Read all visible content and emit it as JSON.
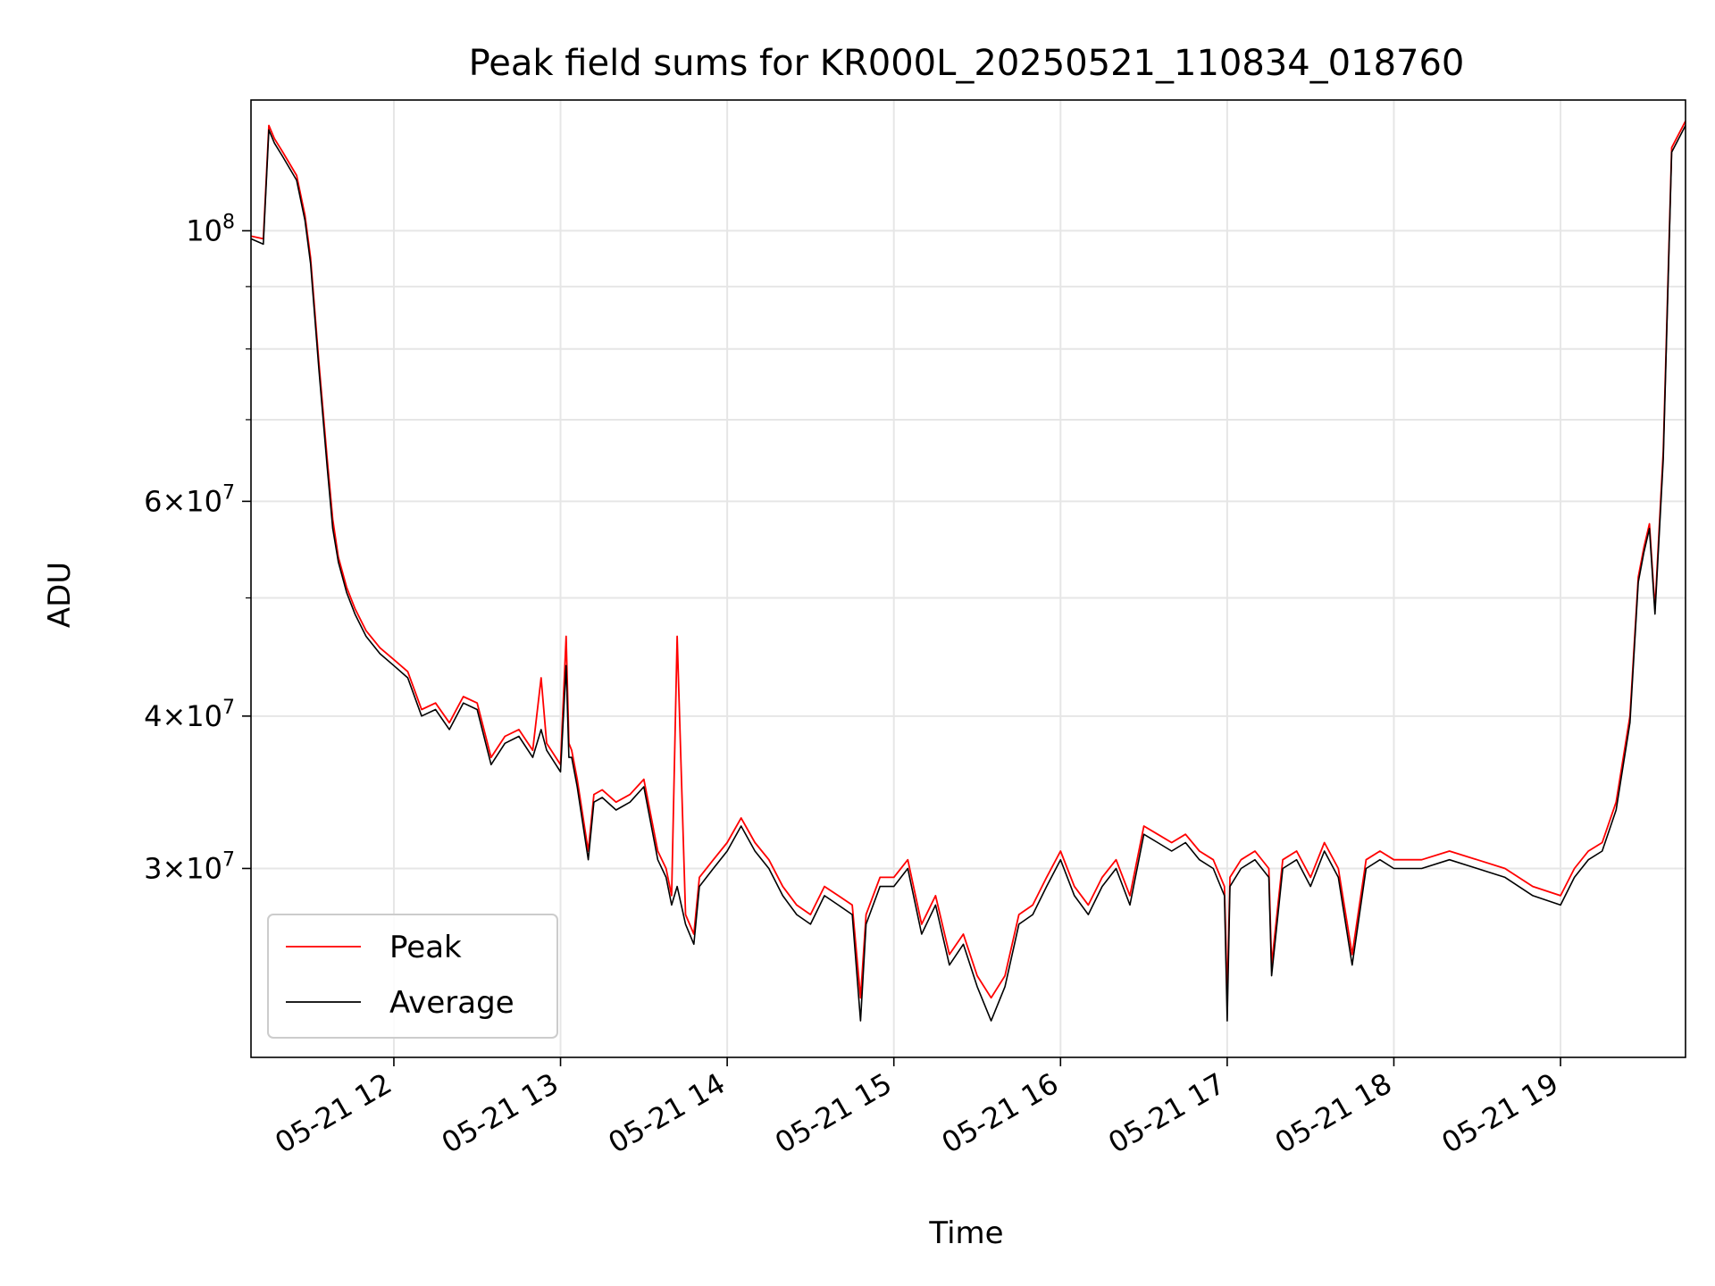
{
  "chart_data": {
    "type": "line",
    "title": "Peak field sums for KR000L_20250521_110834_018760",
    "xlabel": "Time",
    "ylabel": "ADU",
    "yscale": "log",
    "ylim": [
      21000000,
      128000000
    ],
    "xlim": [
      "2025-05-21T11:08:34",
      "2025-05-21T19:45:00"
    ],
    "x_ticks": [
      {
        "t": "2025-05-21T12:00:00",
        "label": "05-21 12"
      },
      {
        "t": "2025-05-21T13:00:00",
        "label": "05-21 13"
      },
      {
        "t": "2025-05-21T14:00:00",
        "label": "05-21 14"
      },
      {
        "t": "2025-05-21T15:00:00",
        "label": "05-21 15"
      },
      {
        "t": "2025-05-21T16:00:00",
        "label": "05-21 16"
      },
      {
        "t": "2025-05-21T17:00:00",
        "label": "05-21 17"
      },
      {
        "t": "2025-05-21T18:00:00",
        "label": "05-21 18"
      },
      {
        "t": "2025-05-21T19:00:00",
        "label": "05-21 19"
      }
    ],
    "y_major_ticks": [
      {
        "value": 100000000,
        "base": "10",
        "exp": "8",
        "mant": ""
      },
      {
        "value": 60000000,
        "base": "10",
        "exp": "7",
        "mant": "6"
      },
      {
        "value": 40000000,
        "base": "10",
        "exp": "7",
        "mant": "4"
      },
      {
        "value": 30000000,
        "base": "10",
        "exp": "7",
        "mant": "3"
      }
    ],
    "y_minor_ticks": [
      90000000,
      80000000,
      70000000,
      50000000
    ],
    "grid": true,
    "legend": {
      "position": "lower-left",
      "entries": [
        "Peak",
        "Average"
      ]
    },
    "series": [
      {
        "name": "Peak",
        "color": "#ff0000",
        "x": [
          "2025-05-21T11:08:34",
          "2025-05-21T11:13:00",
          "2025-05-21T11:15:00",
          "2025-05-21T11:17:00",
          "2025-05-21T11:20:00",
          "2025-05-21T11:25:00",
          "2025-05-21T11:28:00",
          "2025-05-21T11:30:00",
          "2025-05-21T11:33:00",
          "2025-05-21T11:36:00",
          "2025-05-21T11:38:00",
          "2025-05-21T11:40:00",
          "2025-05-21T11:43:00",
          "2025-05-21T11:46:00",
          "2025-05-21T11:50:00",
          "2025-05-21T11:55:00",
          "2025-05-21T12:00:00",
          "2025-05-21T12:05:00",
          "2025-05-21T12:10:00",
          "2025-05-21T12:15:00",
          "2025-05-21T12:20:00",
          "2025-05-21T12:25:00",
          "2025-05-21T12:30:00",
          "2025-05-21T12:35:00",
          "2025-05-21T12:40:00",
          "2025-05-21T12:45:00",
          "2025-05-21T12:50:00",
          "2025-05-21T12:53:00",
          "2025-05-21T12:55:00",
          "2025-05-21T13:00:00",
          "2025-05-21T13:02:00",
          "2025-05-21T13:03:00",
          "2025-05-21T13:04:00",
          "2025-05-21T13:06:00",
          "2025-05-21T13:10:00",
          "2025-05-21T13:12:00",
          "2025-05-21T13:15:00",
          "2025-05-21T13:20:00",
          "2025-05-21T13:25:00",
          "2025-05-21T13:30:00",
          "2025-05-21T13:35:00",
          "2025-05-21T13:38:00",
          "2025-05-21T13:40:00",
          "2025-05-21T13:42:00",
          "2025-05-21T13:45:00",
          "2025-05-21T13:48:00",
          "2025-05-21T13:50:00",
          "2025-05-21T13:55:00",
          "2025-05-21T14:00:00",
          "2025-05-21T14:05:00",
          "2025-05-21T14:10:00",
          "2025-05-21T14:15:00",
          "2025-05-21T14:20:00",
          "2025-05-21T14:25:00",
          "2025-05-21T14:30:00",
          "2025-05-21T14:35:00",
          "2025-05-21T14:40:00",
          "2025-05-21T14:45:00",
          "2025-05-21T14:48:00",
          "2025-05-21T14:50:00",
          "2025-05-21T14:55:00",
          "2025-05-21T15:00:00",
          "2025-05-21T15:05:00",
          "2025-05-21T15:10:00",
          "2025-05-21T15:15:00",
          "2025-05-21T15:20:00",
          "2025-05-21T15:25:00",
          "2025-05-21T15:30:00",
          "2025-05-21T15:35:00",
          "2025-05-21T15:40:00",
          "2025-05-21T15:45:00",
          "2025-05-21T15:50:00",
          "2025-05-21T15:55:00",
          "2025-05-21T16:00:00",
          "2025-05-21T16:05:00",
          "2025-05-21T16:10:00",
          "2025-05-21T16:15:00",
          "2025-05-21T16:20:00",
          "2025-05-21T16:25:00",
          "2025-05-21T16:30:00",
          "2025-05-21T16:35:00",
          "2025-05-21T16:40:00",
          "2025-05-21T16:45:00",
          "2025-05-21T16:50:00",
          "2025-05-21T16:55:00",
          "2025-05-21T16:59:00",
          "2025-05-21T17:00:00",
          "2025-05-21T17:01:00",
          "2025-05-21T17:05:00",
          "2025-05-21T17:10:00",
          "2025-05-21T17:15:00",
          "2025-05-21T17:16:00",
          "2025-05-21T17:20:00",
          "2025-05-21T17:25:00",
          "2025-05-21T17:30:00",
          "2025-05-21T17:35:00",
          "2025-05-21T17:40:00",
          "2025-05-21T17:45:00",
          "2025-05-21T17:50:00",
          "2025-05-21T17:55:00",
          "2025-05-21T18:00:00",
          "2025-05-21T18:10:00",
          "2025-05-21T18:20:00",
          "2025-05-21T18:30:00",
          "2025-05-21T18:40:00",
          "2025-05-21T18:50:00",
          "2025-05-21T19:00:00",
          "2025-05-21T19:05:00",
          "2025-05-21T19:10:00",
          "2025-05-21T19:15:00",
          "2025-05-21T19:20:00",
          "2025-05-21T19:25:00",
          "2025-05-21T19:28:00",
          "2025-05-21T19:30:00",
          "2025-05-21T19:32:00",
          "2025-05-21T19:34:00",
          "2025-05-21T19:37:00",
          "2025-05-21T19:40:00",
          "2025-05-21T19:45:00"
        ],
        "y": [
          99000000,
          98500000,
          122000000,
          119000000,
          116000000,
          111000000,
          103000000,
          95000000,
          78000000,
          65000000,
          58000000,
          54000000,
          51000000,
          49000000,
          47000000,
          45500000,
          44500000,
          43500000,
          40500000,
          41000000,
          39500000,
          41500000,
          41000000,
          37000000,
          38500000,
          39000000,
          37500000,
          43000000,
          38000000,
          36500000,
          46500000,
          38000000,
          37500000,
          35500000,
          31000000,
          34500000,
          34800000,
          34000000,
          34500000,
          35500000,
          31000000,
          30000000,
          28500000,
          46500000,
          27500000,
          26500000,
          29500000,
          30500000,
          31500000,
          33000000,
          31500000,
          30500000,
          29000000,
          28000000,
          27500000,
          29000000,
          28500000,
          28000000,
          23500000,
          27500000,
          29500000,
          29500000,
          30500000,
          27000000,
          28500000,
          25500000,
          26500000,
          24500000,
          23500000,
          24500000,
          27500000,
          28000000,
          29500000,
          31000000,
          29000000,
          28000000,
          29500000,
          30500000,
          28500000,
          32500000,
          32000000,
          31500000,
          32000000,
          31000000,
          30500000,
          29000000,
          23500000,
          29500000,
          30500000,
          31000000,
          30000000,
          25000000,
          30500000,
          31000000,
          29500000,
          31500000,
          30000000,
          25500000,
          30500000,
          31000000,
          30500000,
          30500000,
          31000000,
          30500000,
          30000000,
          29000000,
          28500000,
          30000000,
          31000000,
          31500000,
          34000000,
          40000000,
          52000000,
          55000000,
          57500000,
          49000000,
          66000000,
          117000000,
          123000000
        ]
      },
      {
        "name": "Average",
        "color": "#000000",
        "x": [
          "2025-05-21T11:08:34",
          "2025-05-21T11:13:00",
          "2025-05-21T11:15:00",
          "2025-05-21T11:17:00",
          "2025-05-21T11:20:00",
          "2025-05-21T11:25:00",
          "2025-05-21T11:28:00",
          "2025-05-21T11:30:00",
          "2025-05-21T11:33:00",
          "2025-05-21T11:36:00",
          "2025-05-21T11:38:00",
          "2025-05-21T11:40:00",
          "2025-05-21T11:43:00",
          "2025-05-21T11:46:00",
          "2025-05-21T11:50:00",
          "2025-05-21T11:55:00",
          "2025-05-21T12:00:00",
          "2025-05-21T12:05:00",
          "2025-05-21T12:10:00",
          "2025-05-21T12:15:00",
          "2025-05-21T12:20:00",
          "2025-05-21T12:25:00",
          "2025-05-21T12:30:00",
          "2025-05-21T12:35:00",
          "2025-05-21T12:40:00",
          "2025-05-21T12:45:00",
          "2025-05-21T12:50:00",
          "2025-05-21T12:53:00",
          "2025-05-21T12:55:00",
          "2025-05-21T13:00:00",
          "2025-05-21T13:02:00",
          "2025-05-21T13:03:00",
          "2025-05-21T13:04:00",
          "2025-05-21T13:06:00",
          "2025-05-21T13:10:00",
          "2025-05-21T13:12:00",
          "2025-05-21T13:15:00",
          "2025-05-21T13:20:00",
          "2025-05-21T13:25:00",
          "2025-05-21T13:30:00",
          "2025-05-21T13:35:00",
          "2025-05-21T13:38:00",
          "2025-05-21T13:40:00",
          "2025-05-21T13:42:00",
          "2025-05-21T13:45:00",
          "2025-05-21T13:48:00",
          "2025-05-21T13:50:00",
          "2025-05-21T13:55:00",
          "2025-05-21T14:00:00",
          "2025-05-21T14:05:00",
          "2025-05-21T14:10:00",
          "2025-05-21T14:15:00",
          "2025-05-21T14:20:00",
          "2025-05-21T14:25:00",
          "2025-05-21T14:30:00",
          "2025-05-21T14:35:00",
          "2025-05-21T14:40:00",
          "2025-05-21T14:45:00",
          "2025-05-21T14:48:00",
          "2025-05-21T14:50:00",
          "2025-05-21T14:55:00",
          "2025-05-21T15:00:00",
          "2025-05-21T15:05:00",
          "2025-05-21T15:10:00",
          "2025-05-21T15:15:00",
          "2025-05-21T15:20:00",
          "2025-05-21T15:25:00",
          "2025-05-21T15:30:00",
          "2025-05-21T15:35:00",
          "2025-05-21T15:40:00",
          "2025-05-21T15:45:00",
          "2025-05-21T15:50:00",
          "2025-05-21T15:55:00",
          "2025-05-21T16:00:00",
          "2025-05-21T16:05:00",
          "2025-05-21T16:10:00",
          "2025-05-21T16:15:00",
          "2025-05-21T16:20:00",
          "2025-05-21T16:25:00",
          "2025-05-21T16:30:00",
          "2025-05-21T16:35:00",
          "2025-05-21T16:40:00",
          "2025-05-21T16:45:00",
          "2025-05-21T16:50:00",
          "2025-05-21T16:55:00",
          "2025-05-21T16:59:00",
          "2025-05-21T17:00:00",
          "2025-05-21T17:01:00",
          "2025-05-21T17:05:00",
          "2025-05-21T17:10:00",
          "2025-05-21T17:15:00",
          "2025-05-21T17:16:00",
          "2025-05-21T17:20:00",
          "2025-05-21T17:25:00",
          "2025-05-21T17:30:00",
          "2025-05-21T17:35:00",
          "2025-05-21T17:40:00",
          "2025-05-21T17:45:00",
          "2025-05-21T17:50:00",
          "2025-05-21T17:55:00",
          "2025-05-21T18:00:00",
          "2025-05-21T18:10:00",
          "2025-05-21T18:20:00",
          "2025-05-21T18:30:00",
          "2025-05-21T18:40:00",
          "2025-05-21T18:50:00",
          "2025-05-21T19:00:00",
          "2025-05-21T19:05:00",
          "2025-05-21T19:10:00",
          "2025-05-21T19:15:00",
          "2025-05-21T19:20:00",
          "2025-05-21T19:25:00",
          "2025-05-21T19:28:00",
          "2025-05-21T19:30:00",
          "2025-05-21T19:32:00",
          "2025-05-21T19:34:00",
          "2025-05-21T19:37:00",
          "2025-05-21T19:40:00",
          "2025-05-21T19:45:00"
        ],
        "y": [
          98500000,
          97500000,
          121000000,
          118000000,
          115000000,
          110000000,
          102000000,
          94000000,
          77000000,
          64000000,
          57000000,
          53500000,
          50500000,
          48500000,
          46500000,
          45000000,
          44000000,
          43000000,
          40000000,
          40500000,
          39000000,
          41000000,
          40500000,
          36500000,
          38000000,
          38500000,
          37000000,
          39000000,
          37500000,
          36000000,
          44000000,
          37000000,
          37000000,
          35000000,
          30500000,
          34000000,
          34300000,
          33500000,
          34000000,
          35000000,
          30500000,
          29500000,
          28000000,
          29000000,
          27000000,
          26000000,
          29000000,
          30000000,
          31000000,
          32500000,
          31000000,
          30000000,
          28500000,
          27500000,
          27000000,
          28500000,
          28000000,
          27500000,
          22500000,
          27000000,
          29000000,
          29000000,
          30000000,
          26500000,
          28000000,
          25000000,
          26000000,
          24000000,
          22500000,
          24000000,
          27000000,
          27500000,
          29000000,
          30500000,
          28500000,
          27500000,
          29000000,
          30000000,
          28000000,
          32000000,
          31500000,
          31000000,
          31500000,
          30500000,
          30000000,
          28500000,
          22500000,
          29000000,
          30000000,
          30500000,
          29500000,
          24500000,
          30000000,
          30500000,
          29000000,
          31000000,
          29500000,
          25000000,
          30000000,
          30500000,
          30000000,
          30000000,
          30500000,
          30000000,
          29500000,
          28500000,
          28000000,
          29500000,
          30500000,
          31000000,
          33500000,
          39500000,
          51500000,
          54500000,
          57000000,
          48500000,
          65000000,
          116000000,
          122000000
        ]
      }
    ]
  }
}
